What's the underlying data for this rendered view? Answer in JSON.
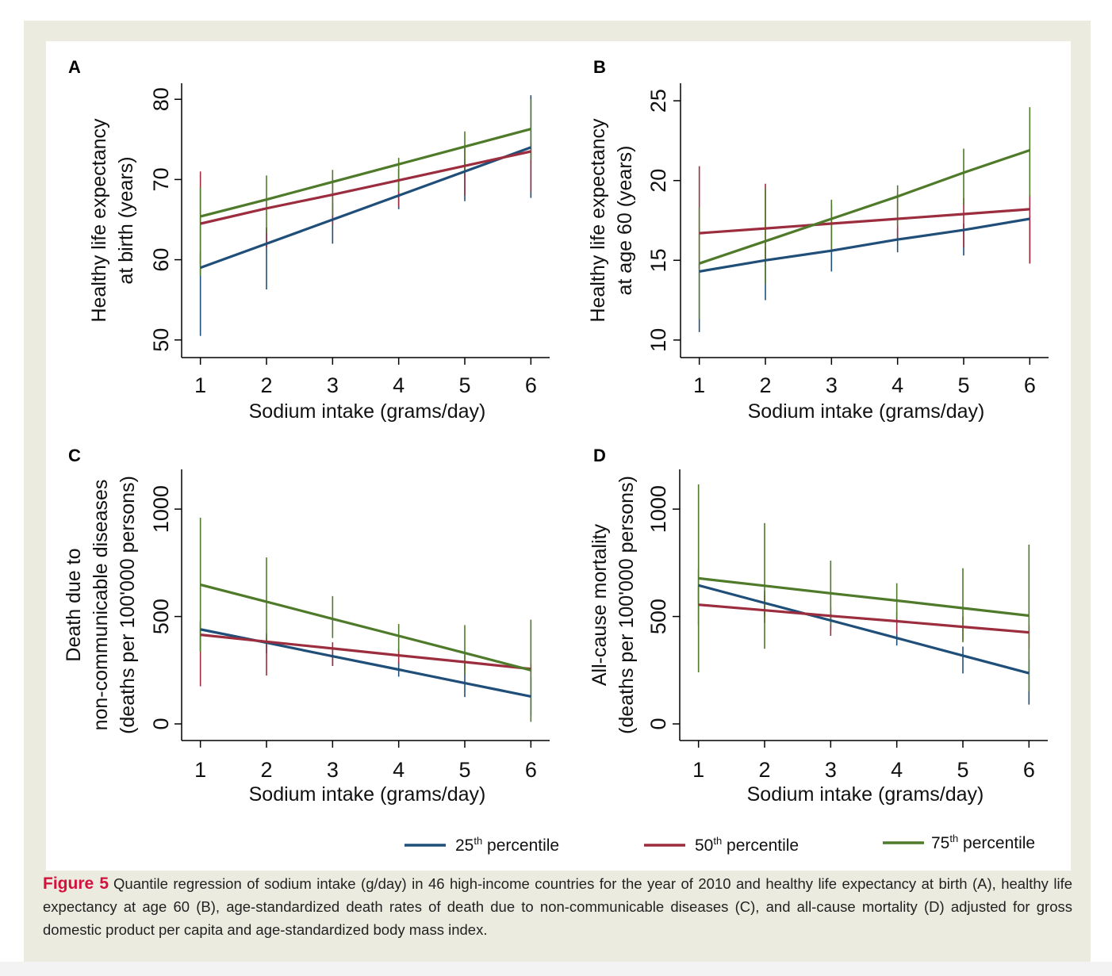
{
  "colors": {
    "frame": "#ecebe0",
    "p25": "#1f4e79",
    "p50": "#9b2d3e",
    "p75": "#4f7a2a",
    "caption_label": "#d2123c"
  },
  "legend": [
    {
      "ord": "25",
      "sup": "th",
      "text": "percentile",
      "color": "#1f4e79"
    },
    {
      "ord": "50",
      "sup": "th",
      "text": "percentile",
      "color": "#9b2d3e"
    },
    {
      "ord": "75",
      "sup": "th",
      "text": "percentile",
      "color": "#4f7a2a"
    }
  ],
  "caption": {
    "label": "Figure 5",
    "text": "Quantile regression of sodium intake (g/day) in 46 high-income countries for the year of 2010 and healthy life expectancy at birth (A), healthy life expectancy at age 60 (B), age-standardized death rates of death due to non-communicable diseases (C), and all-cause mortality (D) adjusted for gross domestic product per capita and age-standardized body mass index."
  },
  "chart_data": [
    {
      "panel": "A",
      "type": "line",
      "xlabel": "Sodium intake (grams/day)",
      "ylabel": [
        "Healthy life expectancy",
        "at birth (years)"
      ],
      "x": [
        1,
        2,
        3,
        4,
        5,
        6
      ],
      "xticks": [
        1,
        2,
        3,
        4,
        5,
        6
      ],
      "yticks": [
        50,
        60,
        70,
        80
      ],
      "xlim": [
        0.8,
        6.2
      ],
      "ylim": [
        48,
        82
      ],
      "series": [
        {
          "name": "25th percentile",
          "values": [
            59,
            62,
            65,
            68,
            71,
            74
          ],
          "ci": [
            [
              50.5,
              61
            ],
            [
              56.3,
              64
            ],
            [
              62,
              67
            ],
            [
              66.3,
              68.8
            ],
            [
              67.3,
              72
            ],
            [
              67.7,
              80.5
            ]
          ]
        },
        {
          "name": "50th percentile",
          "values": [
            64.5,
            66.4,
            68.1,
            69.9,
            71.7,
            73.5
          ],
          "ci": [
            [
              59.5,
              71
            ],
            [
              61.5,
              64
            ],
            [
              64.3,
              70
            ],
            [
              66.6,
              71.3
            ],
            [
              68,
              74
            ],
            [
              68.5,
              74.5
            ]
          ]
        },
        {
          "name": "75th percentile",
          "values": [
            65.4,
            67.5,
            69.7,
            71.9,
            74.1,
            76.3
          ],
          "ci": [
            [
              58,
              69
            ],
            [
              63.3,
              70.5
            ],
            [
              65.5,
              71.2
            ],
            [
              68.5,
              72.7
            ],
            [
              70.8,
              76
            ],
            [
              72.5,
              80
            ]
          ]
        }
      ]
    },
    {
      "panel": "B",
      "type": "line",
      "xlabel": "Sodium intake (grams/day)",
      "ylabel": [
        "Healthy life expectancy",
        "at age 60 (years)"
      ],
      "x": [
        1,
        2,
        3,
        4,
        5,
        6
      ],
      "xticks": [
        1,
        2,
        3,
        4,
        5,
        6
      ],
      "yticks": [
        10,
        15,
        20,
        25
      ],
      "xlim": [
        0.8,
        6.2
      ],
      "ylim": [
        9,
        26.1
      ],
      "series": [
        {
          "name": "25th percentile",
          "values": [
            14.3,
            15,
            15.6,
            16.3,
            16.9,
            17.6
          ],
          "ci": [
            [
              10.5,
              14.8
            ],
            [
              12.5,
              15.8
            ],
            [
              14.3,
              16.2
            ],
            [
              15.5,
              17
            ],
            [
              15.3,
              17.3
            ],
            [
              14.8,
              17.8
            ]
          ]
        },
        {
          "name": "50th percentile",
          "values": [
            16.7,
            17,
            17.3,
            17.6,
            17.9,
            18.2
          ],
          "ci": [
            [
              14.5,
              20.9
            ],
            [
              14.8,
              19.8
            ],
            [
              16.2,
              18.5
            ],
            [
              16.3,
              19.2
            ],
            [
              15.8,
              18.9
            ],
            [
              14.8,
              19.1
            ]
          ]
        },
        {
          "name": "75th percentile",
          "values": [
            14.8,
            16.2,
            17.6,
            19,
            20.5,
            21.9
          ],
          "ci": [
            [
              11.3,
              18.3
            ],
            [
              13.5,
              19.5
            ],
            [
              15.5,
              18.8
            ],
            [
              17.2,
              19.7
            ],
            [
              18.5,
              22
            ],
            [
              19,
              24.6
            ]
          ]
        }
      ]
    },
    {
      "panel": "C",
      "type": "line",
      "xlabel": "Sodium intake (grams/day)",
      "ylabel": [
        "Death due to",
        "non-communicable diseases",
        "(deaths per 100'000 persons)"
      ],
      "x": [
        1,
        2,
        3,
        4,
        5,
        6
      ],
      "xticks": [
        1,
        2,
        3,
        4,
        5,
        6
      ],
      "yticks": [
        0,
        500,
        1000
      ],
      "xlim": [
        0.8,
        6.2
      ],
      "ylim": [
        -70,
        1185
      ],
      "series": [
        {
          "name": "25th percentile",
          "values": [
            440,
            378,
            315,
            253,
            190,
            128
          ],
          "ci": [
            [
              340,
              480
            ],
            [
              330,
              420
            ],
            [
              270,
              340
            ],
            [
              220,
              290
            ],
            [
              125,
              280
            ],
            [
              40,
              220
            ]
          ]
        },
        {
          "name": "50th percentile",
          "values": [
            415,
            383,
            351,
            319,
            288,
            256
          ],
          "ci": [
            [
              175,
              470
            ],
            [
              225,
              400
            ],
            [
              270,
              380
            ],
            [
              280,
              350
            ],
            [
              250,
              320
            ],
            [
              235,
              280
            ]
          ]
        },
        {
          "name": "75th percentile",
          "values": [
            648,
            569,
            489,
            410,
            330,
            250
          ],
          "ci": [
            [
              335,
              960
            ],
            [
              370,
              775
            ],
            [
              400,
              595
            ],
            [
              335,
              465
            ],
            [
              230,
              460
            ],
            [
              10,
              485
            ]
          ]
        }
      ]
    },
    {
      "panel": "D",
      "type": "line",
      "xlabel": "Sodium intake (grams/day)",
      "ylabel": [
        "All-cause mortality",
        "(deaths per 100'000 persons)"
      ],
      "x": [
        1,
        2,
        3,
        4,
        5,
        6
      ],
      "xticks": [
        1,
        2,
        3,
        4,
        5,
        6
      ],
      "yticks": [
        0,
        500,
        1000
      ],
      "xlim": [
        0.8,
        6.2
      ],
      "ylim": [
        -70,
        1185
      ],
      "series": [
        {
          "name": "25th percentile",
          "values": [
            645,
            563,
            482,
            400,
            318,
            236
          ],
          "ci": [
            [
              560,
              720
            ],
            [
              500,
              620
            ],
            [
              440,
              520
            ],
            [
              365,
              420
            ],
            [
              235,
              360
            ],
            [
              90,
              300
            ]
          ]
        },
        {
          "name": "50th percentile",
          "values": [
            555,
            529,
            503,
            478,
            452,
            426
          ],
          "ci": [
            [
              460,
              640
            ],
            [
              470,
              600
            ],
            [
              410,
              540
            ],
            [
              420,
              520
            ],
            [
              390,
              500
            ],
            [
              350,
              460
            ]
          ]
        },
        {
          "name": "75th percentile",
          "values": [
            678,
            643,
            608,
            574,
            539,
            504
          ],
          "ci": [
            [
              240,
              1115
            ],
            [
              350,
              935
            ],
            [
              460,
              760
            ],
            [
              490,
              655
            ],
            [
              380,
              725
            ],
            [
              150,
              835
            ]
          ]
        }
      ]
    }
  ]
}
